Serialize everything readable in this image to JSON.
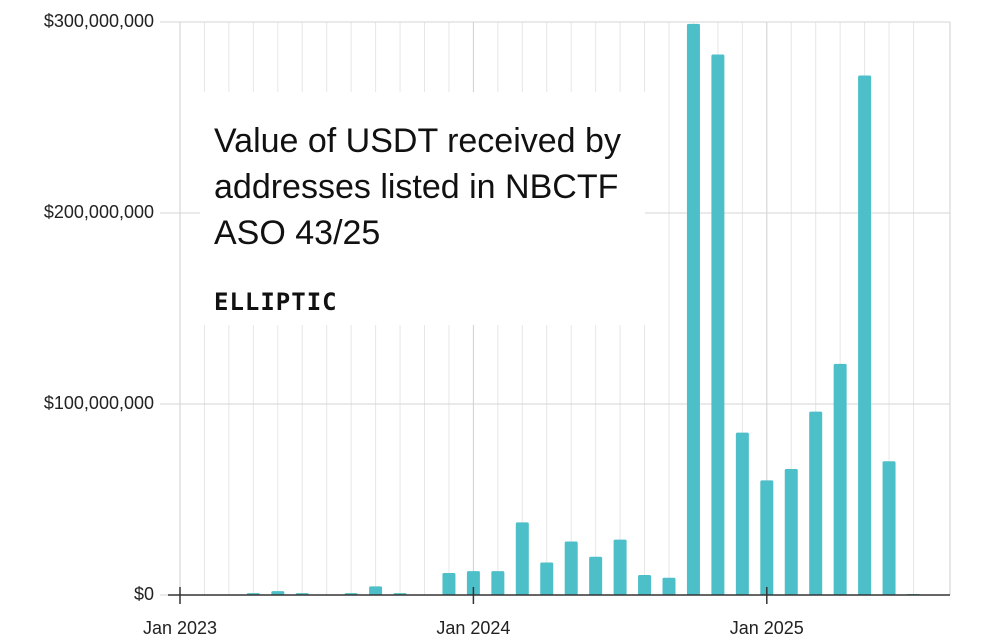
{
  "chart_data": {
    "type": "bar",
    "title": "Value of USDT received by addresses listed in NBCTF ASO 43/25",
    "logo": "ELLIPTIC",
    "categories": [
      "Jan 2023",
      null,
      null,
      null,
      null,
      null,
      null,
      null,
      null,
      null,
      null,
      null,
      "Jan 2024",
      null,
      null,
      null,
      null,
      null,
      null,
      null,
      null,
      null,
      null,
      null,
      "Jan 2025",
      null,
      null,
      null,
      null,
      null,
      null
    ],
    "values": [
      0,
      0,
      0,
      1000000,
      2000000,
      1000000,
      0,
      1000000,
      4500000,
      1000000,
      0,
      11500000,
      12500000,
      12500000,
      38000000,
      17000000,
      28000000,
      20000000,
      29000000,
      10500000,
      9000000,
      299000000,
      283000000,
      85000000,
      60000000,
      66000000,
      96000000,
      121000000,
      272000000,
      70000000,
      500000
    ],
    "color": "#4dbfc8",
    "ylim": [
      0,
      300000000
    ],
    "yticks": [
      {
        "value": 0,
        "label": "$0"
      },
      {
        "value": 100000000,
        "label": "$100,000,000"
      },
      {
        "value": 200000000,
        "label": "$200,000,000"
      },
      {
        "value": 300000000,
        "label": "$300,000,000"
      }
    ],
    "grid": true
  }
}
